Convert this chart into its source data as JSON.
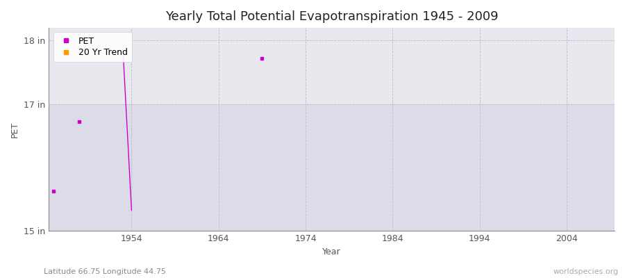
{
  "title": "Yearly Total Potential Evapotranspiration 1945 - 2009",
  "xlabel": "Year",
  "ylabel": "PET",
  "xlim": [
    1944.5,
    2009.5
  ],
  "ylim": [
    15.0,
    18.2
  ],
  "yticks": [
    15,
    17,
    18
  ],
  "ytick_labels": [
    "15 in",
    "17 in",
    "18 in"
  ],
  "xticks": [
    1954,
    1964,
    1974,
    1984,
    1994,
    2004
  ],
  "bg_upper_color": "#e8e8ee",
  "bg_lower_color": "#dcdce8",
  "bg_split_y": 17.0,
  "grid_color": "#bbbbcc",
  "pet_color": "#cc00cc",
  "trend_color": "#ff9900",
  "pet_points": [
    [
      1945,
      15.62
    ],
    [
      1948,
      16.72
    ],
    [
      1969,
      17.72
    ]
  ],
  "pet_line_x": [
    1953,
    1954
  ],
  "pet_line_y": [
    17.88,
    15.32
  ],
  "footnote_left": "Latitude 66.75 Longitude 44.75",
  "footnote_right": "worldspecies.org",
  "title_fontsize": 13,
  "axis_label_fontsize": 9,
  "tick_fontsize": 9,
  "footnote_fontsize": 8
}
